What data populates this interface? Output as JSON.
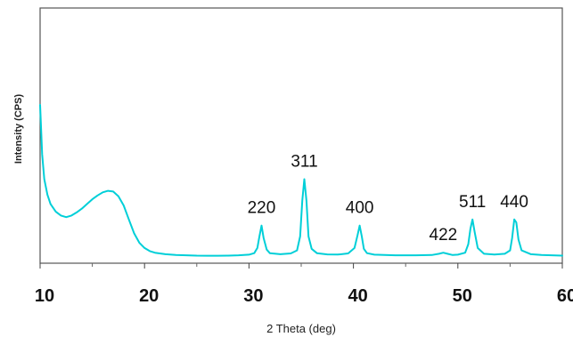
{
  "chart_data": {
    "type": "line",
    "xlabel": "2 Theta (deg)",
    "ylabel": "Intensity (CPS)",
    "xlim": [
      10,
      60
    ],
    "ylim": [
      0,
      100
    ],
    "x_ticks": [
      10,
      20,
      30,
      40,
      50,
      60
    ],
    "y_ticks_visible": false,
    "grid": false,
    "series_color": "#00cfd8",
    "series": [
      {
        "x": [
          10.0,
          10.2,
          10.4,
          10.7,
          11.0,
          11.5,
          12.0,
          12.5,
          13.0,
          13.5,
          14.0,
          14.5,
          15.0,
          15.5,
          16.0,
          16.5,
          17.0,
          17.5,
          18.0,
          18.5,
          19.0,
          19.5,
          20.0,
          20.5,
          21.0,
          22.0,
          23.0,
          24.0,
          25.0,
          26.0,
          27.0,
          28.0,
          29.0,
          30.0,
          30.5,
          30.8,
          31.0,
          31.2,
          31.4,
          31.7,
          32.0,
          33.0,
          34.0,
          34.6,
          34.9,
          35.1,
          35.3,
          35.5,
          35.7,
          36.0,
          36.5,
          37.5,
          38.5,
          39.5,
          40.1,
          40.4,
          40.6,
          40.8,
          41.0,
          41.3,
          42.0,
          44.0,
          46.0,
          47.5,
          48.2,
          48.6,
          49.0,
          49.5,
          50.0,
          50.7,
          51.0,
          51.2,
          51.4,
          51.6,
          51.9,
          52.5,
          53.5,
          54.5,
          55.0,
          55.2,
          55.4,
          55.6,
          55.8,
          56.1,
          57.0,
          58.0,
          59.0,
          60.0
        ],
        "y": [
          100.0,
          68.0,
          52.0,
          42.0,
          36.0,
          31.0,
          28.5,
          27.5,
          28.5,
          30.5,
          33.0,
          36.0,
          39.0,
          41.5,
          43.5,
          44.5,
          44.0,
          41.0,
          35.0,
          26.0,
          17.0,
          11.0,
          7.5,
          5.5,
          4.5,
          3.5,
          3.0,
          2.8,
          2.6,
          2.5,
          2.5,
          2.6,
          2.8,
          3.2,
          4.2,
          7.5,
          15.0,
          22.0,
          14.0,
          6.5,
          4.2,
          3.5,
          4.0,
          6.0,
          15.0,
          38.0,
          52.0,
          38.0,
          15.0,
          7.0,
          4.2,
          3.4,
          3.3,
          4.0,
          7.5,
          16.0,
          22.0,
          15.0,
          7.0,
          4.2,
          3.2,
          2.8,
          2.8,
          3.0,
          3.8,
          4.5,
          3.8,
          3.0,
          3.2,
          4.5,
          10.0,
          20.0,
          26.0,
          18.0,
          7.5,
          3.8,
          3.3,
          3.8,
          6.0,
          14.0,
          26.0,
          24.0,
          13.0,
          6.0,
          3.5,
          3.0,
          2.8,
          2.6
        ]
      }
    ],
    "peak_labels": [
      {
        "text": "220",
        "x": 31.2,
        "y": 22
      },
      {
        "text": "311",
        "x": 35.3,
        "y": 52
      },
      {
        "text": "400",
        "x": 40.6,
        "y": 22
      },
      {
        "text": "422",
        "x": 48.6,
        "y": 4.5
      },
      {
        "text": "511",
        "x": 51.4,
        "y": 26
      },
      {
        "text": "440",
        "x": 55.4,
        "y": 26
      }
    ]
  }
}
